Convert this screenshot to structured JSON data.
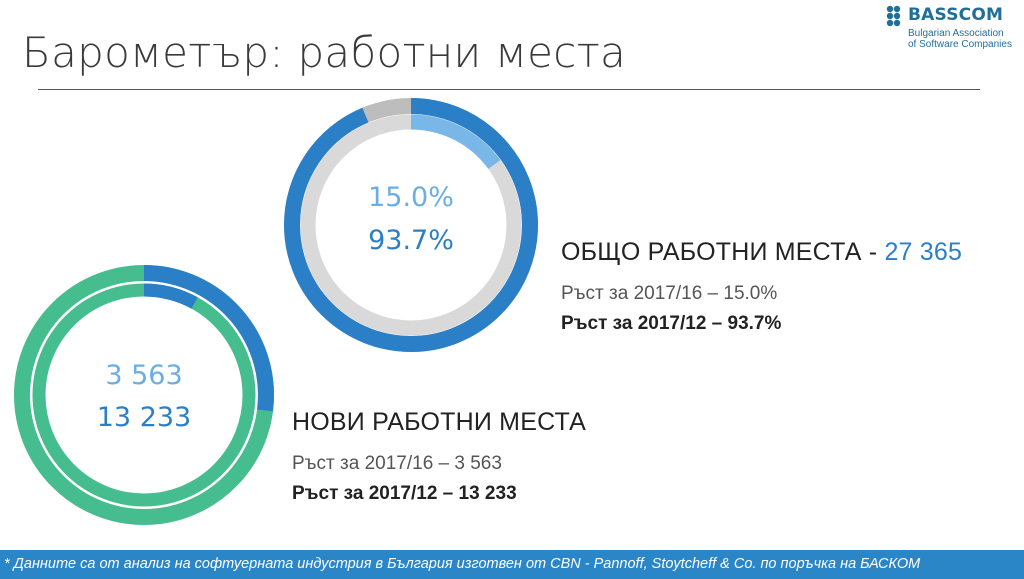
{
  "title": "Барометър: работни места",
  "logo": {
    "word": "BASSCOM",
    "sub_line1": "Bulgarian Association",
    "sub_line2": "of Software Companies"
  },
  "total_jobs": {
    "center_top": "15.0%",
    "center_bottom": "93.7%",
    "heading": "ОБЩО РАБОТНИ МЕСТА - ",
    "heading_value": "27 365",
    "line1": "Ръст за 2017/16 – 15.0%",
    "line2": "Ръст за 2017/12 – 93.7%",
    "outer_ring_fraction": 0.937,
    "inner_ring_fraction": 0.15
  },
  "new_jobs": {
    "center_top": "3 563",
    "center_bottom": "13 233",
    "heading": "НОВИ РАБОТНИ МЕСТА",
    "line1": "Ръст за 2017/16 – 3 563",
    "line2": "Ръст за 2017/12 – 13 233",
    "outer_ring_fraction": 0.27,
    "inner_ring_fraction": 0.08
  },
  "footer": "* Данните са от анализ на софтуерната индустрия в България изготвен от CBN - Pannoff, Stoytcheff & Co. по поръчка на БАСКОМ",
  "colors": {
    "blue": "#2a7fc6",
    "light_blue": "#79b7e8",
    "gray": "#d9d9d9",
    "dark_gray": "#bdbdbd",
    "green": "#45bd8e",
    "footer_bg": "#2a86c7"
  }
}
